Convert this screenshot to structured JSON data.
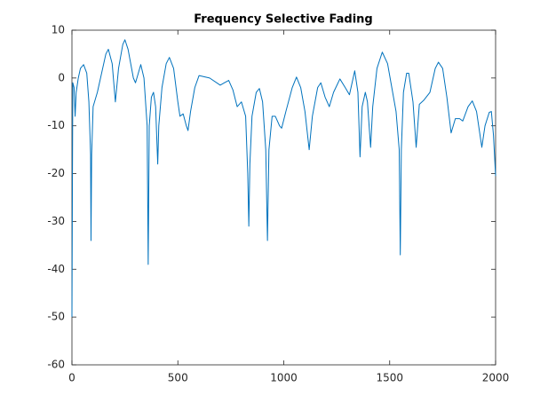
{
  "chart_data": {
    "type": "line",
    "title": "Frequency Selective Fading",
    "x": [
      0,
      4,
      10,
      15,
      20,
      30,
      40,
      55,
      70,
      80,
      88,
      90,
      93,
      100,
      120,
      140,
      160,
      172,
      190,
      205,
      220,
      240,
      250,
      265,
      290,
      300,
      310,
      325,
      340,
      355,
      360,
      365,
      375,
      385,
      395,
      405,
      410,
      425,
      445,
      460,
      480,
      500,
      510,
      525,
      540,
      548,
      560,
      580,
      600,
      650,
      700,
      720,
      740,
      760,
      780,
      800,
      820,
      830,
      835,
      840,
      850,
      870,
      885,
      900,
      915,
      923,
      930,
      945,
      960,
      980,
      990,
      1010,
      1040,
      1060,
      1080,
      1100,
      1120,
      1135,
      1160,
      1175,
      1195,
      1215,
      1235,
      1265,
      1290,
      1310,
      1335,
      1350,
      1360,
      1370,
      1385,
      1395,
      1410,
      1420,
      1440,
      1465,
      1490,
      1510,
      1530,
      1545,
      1550,
      1555,
      1565,
      1580,
      1590,
      1610,
      1625,
      1640,
      1660,
      1690,
      1715,
      1730,
      1750,
      1770,
      1790,
      1810,
      1830,
      1845,
      1870,
      1890,
      1910,
      1935,
      1950,
      1970,
      1980,
      1990,
      2000
    ],
    "values": [
      -50,
      -1,
      -2,
      -8,
      -3,
      0,
      2,
      2.8,
      1,
      -5,
      -16,
      -34,
      -16,
      -6,
      -3,
      1,
      5,
      6,
      3,
      -5,
      2,
      7,
      8,
      6,
      0,
      -1,
      0.5,
      2.8,
      0,
      -10,
      -39,
      -10,
      -4,
      -3,
      -6,
      -18,
      -10,
      -2,
      3,
      4.3,
      2,
      -5,
      -8,
      -7.5,
      -10,
      -11,
      -7,
      -2,
      0.5,
      0,
      -1.5,
      -1,
      -0.5,
      -2.5,
      -6,
      -5,
      -8,
      -20,
      -31,
      -18,
      -8,
      -3,
      -2.2,
      -5,
      -15,
      -34,
      -15,
      -8,
      -8,
      -10,
      -10.5,
      -7,
      -2,
      0.2,
      -2,
      -7,
      -15,
      -8,
      -2,
      -1,
      -4,
      -6,
      -3,
      -0.2,
      -2,
      -3.5,
      1.5,
      -3,
      -16.5,
      -6,
      -3,
      -5,
      -14.5,
      -6,
      2,
      5.4,
      3,
      -2,
      -7,
      -15,
      -37,
      -15,
      -3,
      1,
      1,
      -5,
      -14.5,
      -5.5,
      -4.7,
      -3,
      2,
      3.3,
      2,
      -4,
      -11.5,
      -8.5,
      -8.5,
      -9,
      -6,
      -4.8,
      -7,
      -14.5,
      -10,
      -7.2,
      -7,
      -12,
      -20.5
    ],
    "color": "#0072bd",
    "xlim": [
      0,
      2000
    ],
    "xticks": [
      0,
      500,
      1000,
      1500,
      2000
    ],
    "ylim": [
      -60,
      10
    ],
    "yticks": [
      -60,
      -50,
      -40,
      -30,
      -20,
      -10,
      0,
      10
    ]
  }
}
